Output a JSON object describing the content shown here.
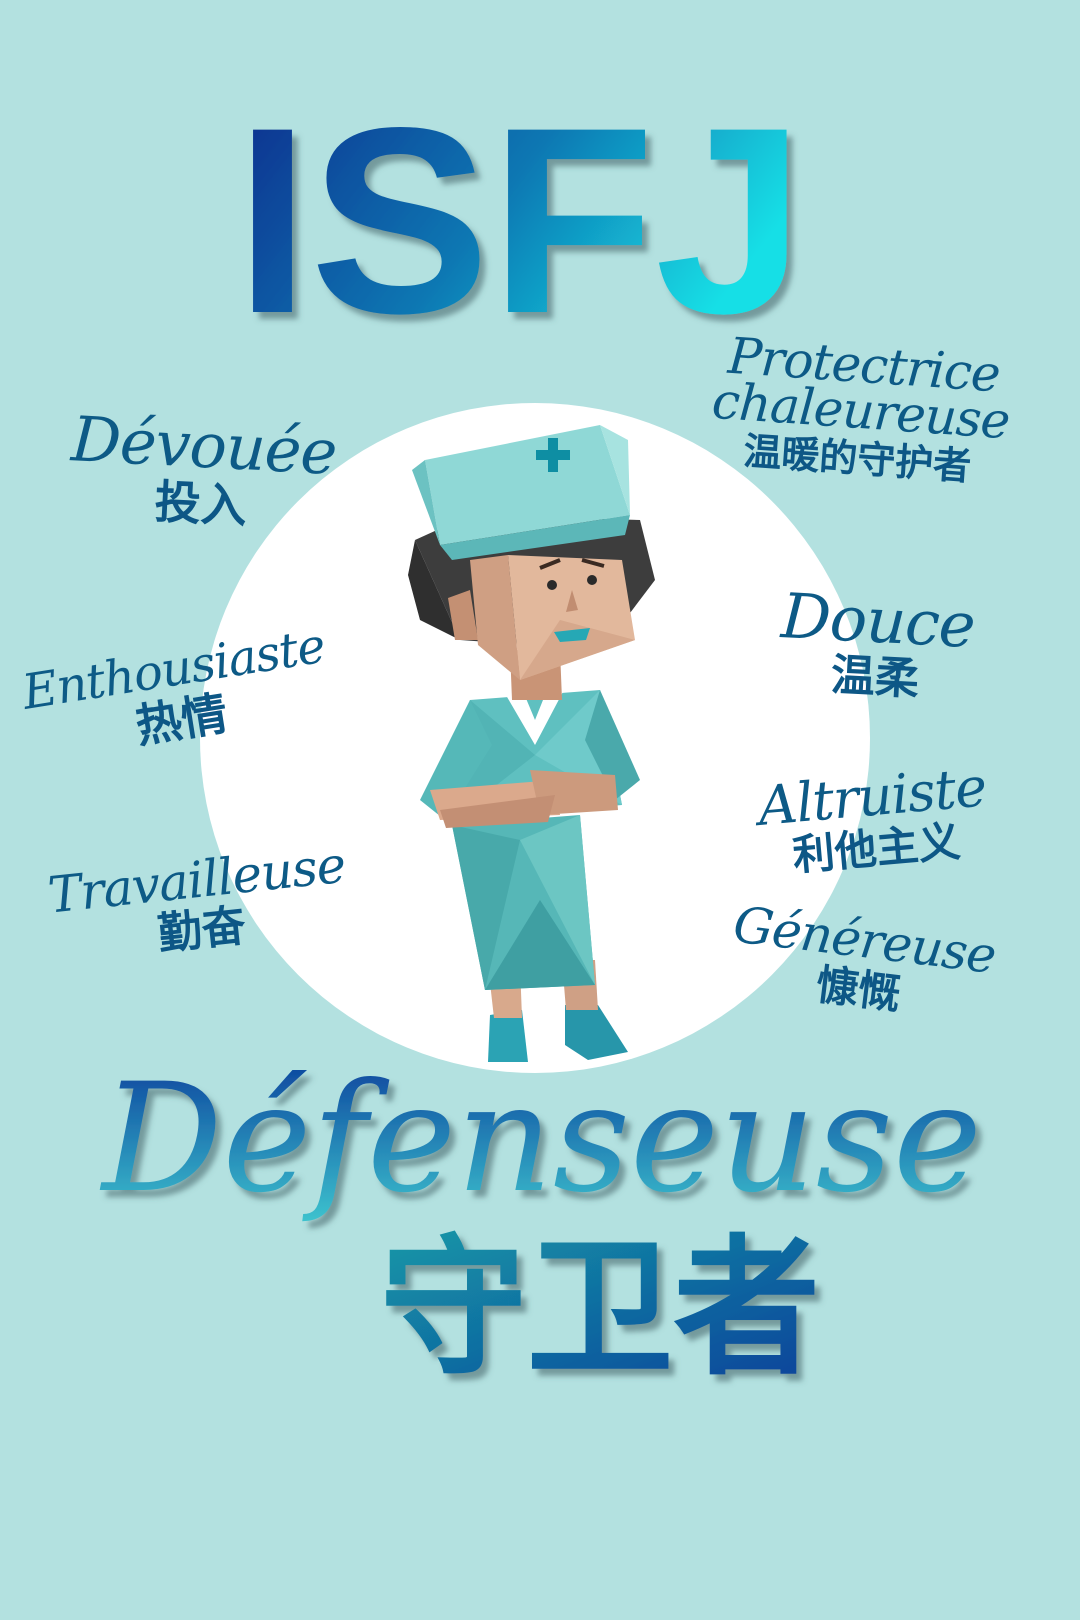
{
  "title": "ISFJ",
  "subtitle_fr": "Défenseuse",
  "subtitle_zh": "守卫者",
  "colors": {
    "background": "#b3e1e0",
    "title_gradient_start": "#0a2a8c",
    "title_gradient_end": "#16dfe6",
    "word_text": "#0d5a86"
  },
  "traits": [
    {
      "fr": "Dévouée",
      "zh": "投入"
    },
    {
      "fr": "Protectrice",
      "fr2": "chaleureuse",
      "zh": "温暖的守护者"
    },
    {
      "fr": "Enthousiaste",
      "zh": "热情"
    },
    {
      "fr": "Douce",
      "zh": "温柔"
    },
    {
      "fr": "Travailleuse",
      "zh": "勤奋"
    },
    {
      "fr": "Altruiste",
      "zh": "利他主义"
    },
    {
      "fr": "Généreuse",
      "zh": "慷慨"
    }
  ],
  "illustration": {
    "subject": "nurse-character",
    "icon": "medical-cross-icon"
  }
}
